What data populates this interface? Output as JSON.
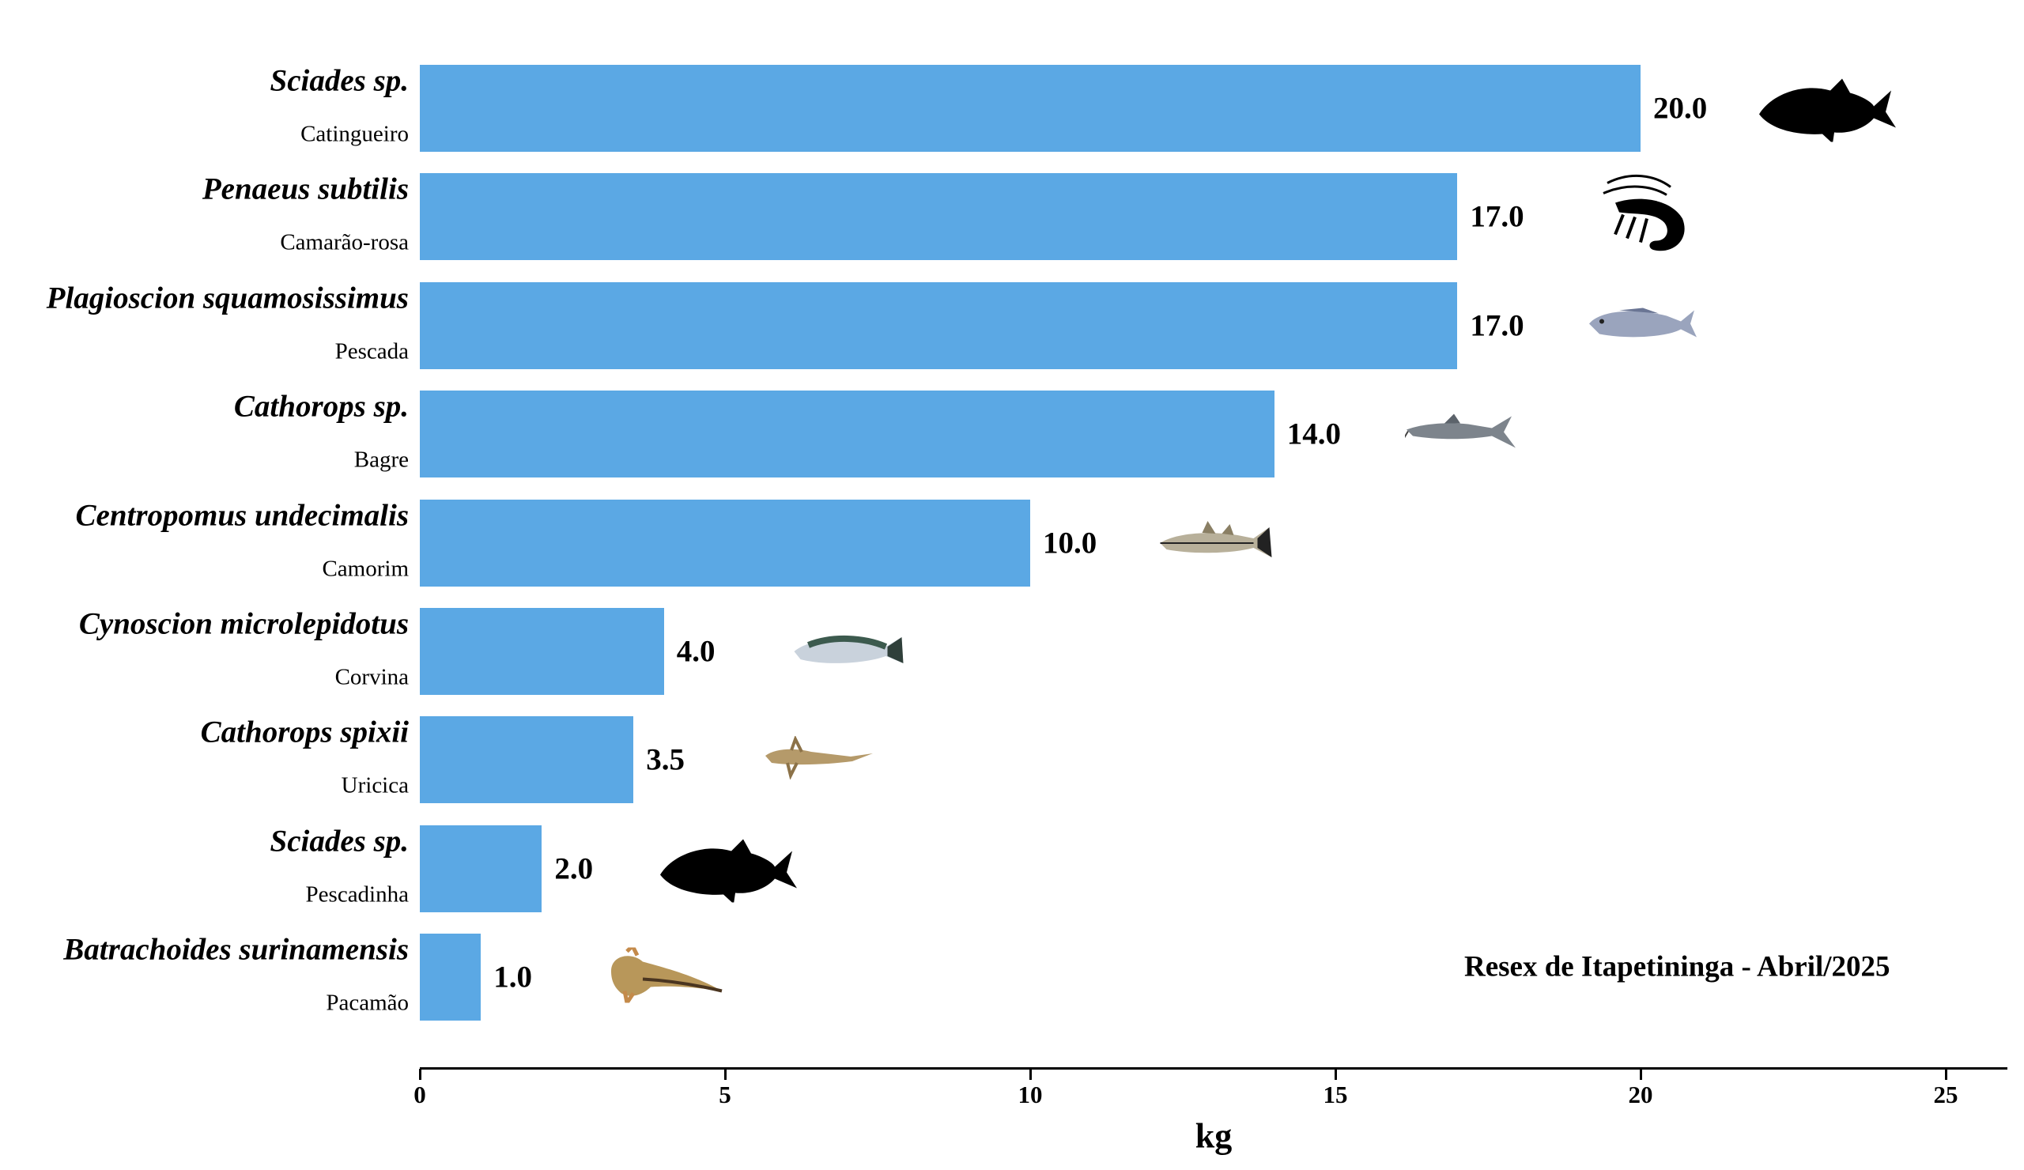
{
  "chart_data": {
    "type": "bar",
    "orientation": "horizontal",
    "categories": [
      {
        "scientific": "Sciades sp.",
        "common": "Catingueiro",
        "icon": "fish-silhouette-icon"
      },
      {
        "scientific": "Penaeus subtilis",
        "common": "Camarão-rosa",
        "icon": "shrimp-silhouette-icon"
      },
      {
        "scientific": "Plagioscion squamosissimus",
        "common": "Pescada",
        "icon": "pescada-fish-icon"
      },
      {
        "scientific": "Cathorops sp.",
        "common": "Bagre",
        "icon": "catfish-icon"
      },
      {
        "scientific": "Centropomus undecimalis",
        "common": "Camorim",
        "icon": "snook-fish-icon"
      },
      {
        "scientific": "Cynoscion microlepidotus",
        "common": "Corvina",
        "icon": "corvina-fish-icon"
      },
      {
        "scientific": "Cathorops spixii",
        "common": "Uricica",
        "icon": "uricica-catfish-icon"
      },
      {
        "scientific": "Sciades sp.",
        "common": "Pescadinha",
        "icon": "fish-silhouette-icon"
      },
      {
        "scientific": "Batrachoides surinamensis",
        "common": "Pacamão",
        "icon": "toadfish-icon"
      }
    ],
    "values": [
      20.0,
      17.0,
      17.0,
      14.0,
      10.0,
      4.0,
      3.5,
      2.0,
      1.0
    ],
    "value_labels": [
      "20.0",
      "17.0",
      "17.0",
      "14.0",
      "10.0",
      "4.0",
      "3.5",
      "2.0",
      "1.0"
    ],
    "xlabel": "kg",
    "xlim": [
      0,
      26
    ],
    "xticks": [
      "0",
      "5",
      "10",
      "15",
      "20",
      "25"
    ],
    "xtick_values": [
      0,
      5,
      10,
      15,
      20,
      25
    ],
    "annotation": "Resex de Itapetininga - Abril/2025",
    "bar_color": "#5ba8e4",
    "grid": false
  }
}
